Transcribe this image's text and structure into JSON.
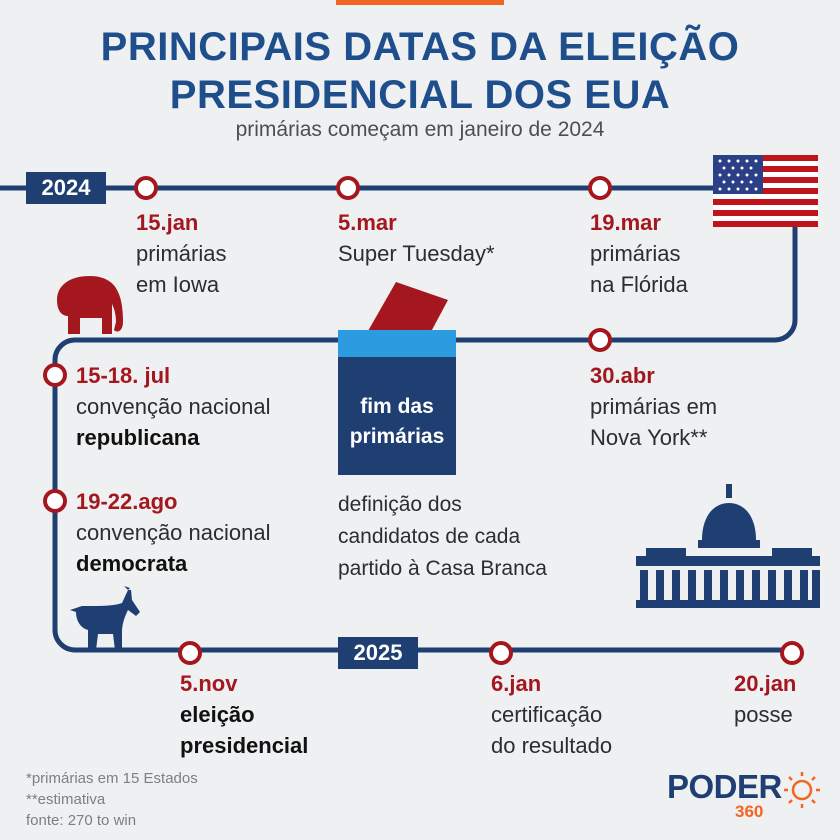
{
  "header": {
    "title_line1": "PRINCIPAIS DATAS DA ELEIÇÃO",
    "title_line2": "PRESIDENCIAL DOS EUA",
    "subtitle": "primárias começam em janeiro de 2024"
  },
  "years": {
    "y2024": "2024",
    "y2025": "2025"
  },
  "events": {
    "jan15": {
      "date": "15.jan",
      "line1": "primárias",
      "line2": "em Iowa"
    },
    "mar5": {
      "date": "5.mar",
      "line1": "Super Tuesday*"
    },
    "mar19": {
      "date": "19.mar",
      "line1": "primárias",
      "line2": "na Flórida"
    },
    "apr30": {
      "date": "30.abr",
      "line1": "primárias em",
      "line2": "Nova York**"
    },
    "jul15": {
      "date": "15-18. jul",
      "line1": "convenção nacional",
      "line2": "republicana"
    },
    "aug19": {
      "date": "19-22.ago",
      "line1": "convenção nacional",
      "line2": "democrata"
    },
    "nov5": {
      "date": "5.nov",
      "line1": "eleição",
      "line2": "presidencial"
    },
    "jan6": {
      "date": "6.jan",
      "line1": "certificação",
      "line2": "do resultado"
    },
    "jan20": {
      "date": "20.jan",
      "line1": "posse"
    }
  },
  "primaries_end": {
    "box_line1": "fim das",
    "box_line2": "primárias",
    "desc_line1": "definição dos",
    "desc_line2": "candidatos de cada",
    "desc_line3": "partido à Casa Branca"
  },
  "footnotes": {
    "note1": "*primárias em 15 Estados",
    "note2": "**estimativa",
    "source": "fonte: 270 to win"
  },
  "brand": {
    "word": "PODER",
    "number": "360"
  },
  "icons": [
    "us-flag-icon",
    "elephant-icon",
    "donkey-icon",
    "capitol-icon",
    "ballot-box-icon",
    "sun-logo-icon"
  ],
  "colors": {
    "navy": "#1f3f73",
    "title_blue": "#1f4e8c",
    "red": "#a5171f",
    "orange": "#f26522",
    "track": "#1f3f73"
  }
}
